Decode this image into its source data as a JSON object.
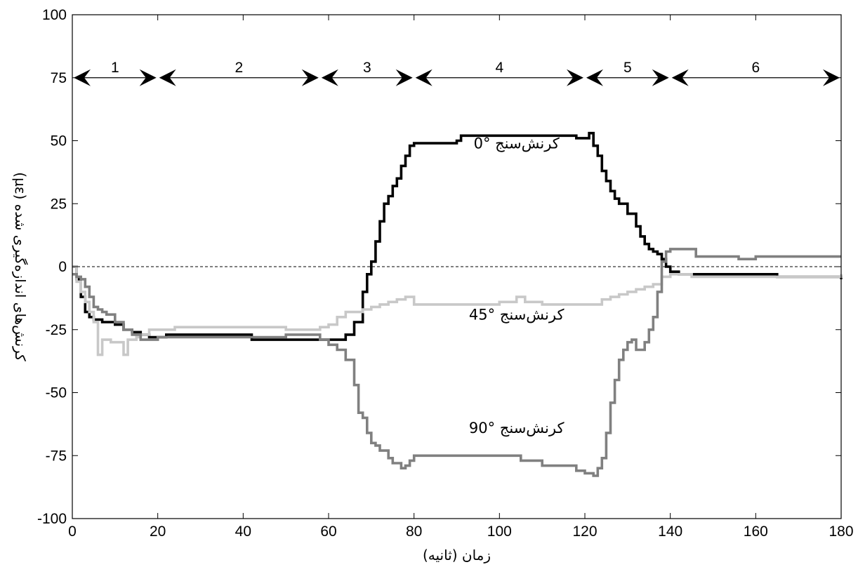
{
  "chart_data": {
    "type": "line",
    "xlabel": "زمان (ثانیه)",
    "ylabel": "کرنش‌های اندازه‌گیری شده (µε)",
    "xlim": [
      0,
      180
    ],
    "ylim": [
      -100,
      100
    ],
    "xticks": [
      0,
      20,
      40,
      60,
      80,
      100,
      120,
      140,
      160,
      180
    ],
    "yticks": [
      100,
      75,
      50,
      25,
      0,
      -25,
      -50,
      -75,
      -100
    ],
    "ytick_labels": [
      "100",
      "75",
      "50",
      "25",
      "0",
      "-25",
      "-50",
      "-75",
      "-100"
    ],
    "grid": false,
    "reference_line": {
      "y": 0,
      "style": "dashed"
    },
    "phases": {
      "y": 75,
      "boundaries": [
        0,
        20,
        58,
        80,
        120,
        140,
        180
      ],
      "labels": [
        "1",
        "2",
        "3",
        "4",
        "5",
        "6"
      ]
    },
    "series": [
      {
        "name": "کرنش‌سنج °0",
        "color": "#000000",
        "points": [
          [
            0,
            0
          ],
          [
            1,
            -5
          ],
          [
            2,
            -12
          ],
          [
            3,
            -18
          ],
          [
            4,
            -20
          ],
          [
            5,
            -21
          ],
          [
            6,
            -21
          ],
          [
            7,
            -22
          ],
          [
            8,
            -22
          ],
          [
            10,
            -23
          ],
          [
            12,
            -25
          ],
          [
            14,
            -26
          ],
          [
            16,
            -27
          ],
          [
            18,
            -28
          ],
          [
            20,
            -28
          ],
          [
            22,
            -27
          ],
          [
            24,
            -27
          ],
          [
            30,
            -27
          ],
          [
            36,
            -27
          ],
          [
            40,
            -27
          ],
          [
            42,
            -29
          ],
          [
            50,
            -29
          ],
          [
            58,
            -29
          ],
          [
            60,
            -29
          ],
          [
            62,
            -29
          ],
          [
            64,
            -27
          ],
          [
            66,
            -22
          ],
          [
            68,
            -10
          ],
          [
            69,
            -3
          ],
          [
            70,
            2
          ],
          [
            71,
            10
          ],
          [
            72,
            18
          ],
          [
            73,
            25
          ],
          [
            74,
            28
          ],
          [
            75,
            32
          ],
          [
            76,
            35
          ],
          [
            77,
            40
          ],
          [
            78,
            44
          ],
          [
            79,
            48
          ],
          [
            80,
            49
          ],
          [
            85,
            49
          ],
          [
            90,
            50
          ],
          [
            91,
            52
          ],
          [
            100,
            52
          ],
          [
            110,
            52
          ],
          [
            117,
            52
          ],
          [
            118,
            51
          ],
          [
            120,
            51
          ],
          [
            121,
            53
          ],
          [
            122,
            48
          ],
          [
            123,
            44
          ],
          [
            124,
            38
          ],
          [
            125,
            34
          ],
          [
            126,
            30
          ],
          [
            127,
            27
          ],
          [
            128,
            25
          ],
          [
            130,
            21
          ],
          [
            132,
            16
          ],
          [
            133,
            12
          ],
          [
            134,
            9
          ],
          [
            135,
            7
          ],
          [
            136,
            6
          ],
          [
            137,
            5
          ],
          [
            138,
            3
          ],
          [
            139,
            0
          ],
          [
            140,
            -2
          ],
          [
            142,
            -3
          ],
          [
            150,
            -3
          ],
          [
            160,
            -3
          ],
          [
            165,
            -4
          ],
          [
            170,
            -4
          ],
          [
            172,
            -4
          ],
          [
            175,
            -4
          ],
          [
            180,
            -5
          ]
        ]
      },
      {
        "name": "کرنش‌سنج °45",
        "color": "#c8c8c8",
        "points": [
          [
            0,
            0
          ],
          [
            1,
            -6
          ],
          [
            2,
            -10
          ],
          [
            3,
            -14
          ],
          [
            4,
            -18
          ],
          [
            5,
            -22
          ],
          [
            6,
            -35
          ],
          [
            7,
            -29
          ],
          [
            9,
            -30
          ],
          [
            11,
            -30
          ],
          [
            12,
            -35
          ],
          [
            13,
            -29
          ],
          [
            14,
            -29
          ],
          [
            15,
            -28
          ],
          [
            16,
            -27
          ],
          [
            18,
            -25
          ],
          [
            20,
            -25
          ],
          [
            22,
            -25
          ],
          [
            24,
            -24
          ],
          [
            30,
            -24
          ],
          [
            40,
            -24
          ],
          [
            48,
            -24
          ],
          [
            50,
            -25
          ],
          [
            56,
            -25
          ],
          [
            58,
            -24
          ],
          [
            60,
            -23
          ],
          [
            62,
            -20
          ],
          [
            64,
            -18
          ],
          [
            66,
            -18
          ],
          [
            68,
            -17
          ],
          [
            70,
            -16
          ],
          [
            72,
            -15
          ],
          [
            74,
            -14
          ],
          [
            76,
            -13
          ],
          [
            78,
            -12
          ],
          [
            80,
            -15
          ],
          [
            90,
            -15
          ],
          [
            95,
            -15
          ],
          [
            100,
            -14
          ],
          [
            104,
            -12
          ],
          [
            106,
            -14
          ],
          [
            110,
            -15
          ],
          [
            115,
            -15
          ],
          [
            120,
            -15
          ],
          [
            122,
            -15
          ],
          [
            124,
            -13
          ],
          [
            126,
            -12
          ],
          [
            128,
            -11
          ],
          [
            130,
            -10
          ],
          [
            132,
            -9
          ],
          [
            134,
            -8
          ],
          [
            136,
            -7
          ],
          [
            138,
            -4
          ],
          [
            140,
            -3
          ],
          [
            145,
            -4
          ],
          [
            150,
            -4
          ],
          [
            160,
            -4
          ],
          [
            170,
            -4
          ],
          [
            175,
            -4
          ],
          [
            180,
            -3
          ]
        ]
      },
      {
        "name": "کرنش‌سنج °90",
        "color": "#808080",
        "points": [
          [
            0,
            -3
          ],
          [
            1,
            -4
          ],
          [
            2,
            -5
          ],
          [
            3,
            -8
          ],
          [
            4,
            -12
          ],
          [
            5,
            -16
          ],
          [
            6,
            -17
          ],
          [
            7,
            -18
          ],
          [
            8,
            -19
          ],
          [
            10,
            -22
          ],
          [
            12,
            -25
          ],
          [
            14,
            -27
          ],
          [
            16,
            -29
          ],
          [
            18,
            -29
          ],
          [
            20,
            -28
          ],
          [
            22,
            -28
          ],
          [
            30,
            -28
          ],
          [
            40,
            -28
          ],
          [
            50,
            -27
          ],
          [
            56,
            -27
          ],
          [
            58,
            -29
          ],
          [
            60,
            -31
          ],
          [
            62,
            -33
          ],
          [
            64,
            -37
          ],
          [
            66,
            -47
          ],
          [
            67,
            -58
          ],
          [
            68,
            -60
          ],
          [
            69,
            -66
          ],
          [
            70,
            -70
          ],
          [
            71,
            -71
          ],
          [
            72,
            -73
          ],
          [
            74,
            -76
          ],
          [
            75,
            -78
          ],
          [
            76,
            -78
          ],
          [
            77,
            -80
          ],
          [
            78,
            -79
          ],
          [
            79,
            -77
          ],
          [
            80,
            -75
          ],
          [
            90,
            -75
          ],
          [
            100,
            -75
          ],
          [
            105,
            -77
          ],
          [
            110,
            -79
          ],
          [
            115,
            -79
          ],
          [
            118,
            -81
          ],
          [
            120,
            -82
          ],
          [
            122,
            -83
          ],
          [
            123,
            -80
          ],
          [
            124,
            -76
          ],
          [
            125,
            -66
          ],
          [
            126,
            -54
          ],
          [
            127,
            -45
          ],
          [
            128,
            -37
          ],
          [
            129,
            -33
          ],
          [
            130,
            -30
          ],
          [
            131,
            -29
          ],
          [
            132,
            -33
          ],
          [
            134,
            -30
          ],
          [
            135,
            -25
          ],
          [
            136,
            -20
          ],
          [
            137,
            -10
          ],
          [
            138,
            2
          ],
          [
            139,
            6
          ],
          [
            140,
            7
          ],
          [
            144,
            7
          ],
          [
            146,
            4
          ],
          [
            150,
            4
          ],
          [
            154,
            4
          ],
          [
            156,
            3
          ],
          [
            160,
            4
          ],
          [
            170,
            4
          ],
          [
            180,
            4
          ]
        ]
      }
    ],
    "annotations": [
      {
        "text": "کرنش‌سنج °0",
        "x": 104,
        "y": 47
      },
      {
        "text": "کرنش‌سنج °45",
        "x": 104,
        "y": -21
      },
      {
        "text": "کرنش‌سنج °90",
        "x": 104,
        "y": -66
      }
    ]
  }
}
